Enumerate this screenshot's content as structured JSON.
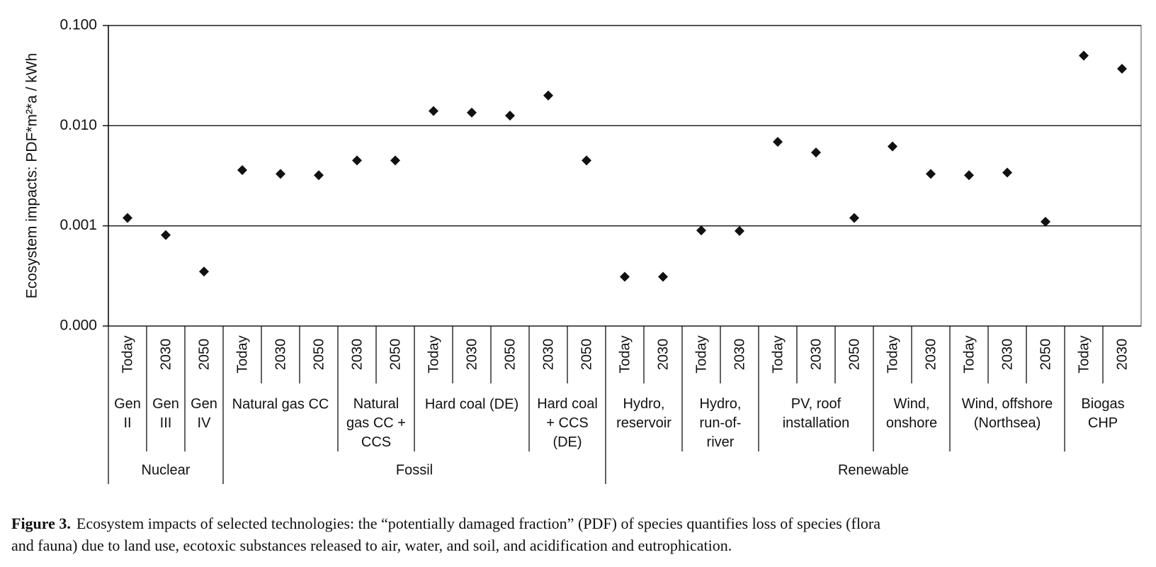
{
  "chart_data": {
    "type": "scatter",
    "y_label": "Ecosystem impacts: PDF*m²*a / kWh",
    "log_scale": true,
    "grid": true,
    "color": "#111111",
    "ylim": [
      0.0001,
      0.1
    ],
    "yticks": [
      {
        "value": 0.0001,
        "label": "0.000"
      },
      {
        "value": 0.001,
        "label": "0.001"
      },
      {
        "value": 0.01,
        "label": "0.010"
      },
      {
        "value": 0.1,
        "label": "0.100"
      }
    ],
    "groups": [
      {
        "name": "Nuclear",
        "subgroups": [
          {
            "name": "Gen\nII",
            "categories": [
              "Today"
            ],
            "values": [
              0.0012
            ]
          },
          {
            "name": "Gen\nIII",
            "categories": [
              "2030"
            ],
            "values": [
              0.00081
            ]
          },
          {
            "name": "Gen\nIV",
            "categories": [
              "2050"
            ],
            "values": [
              0.00035
            ]
          }
        ]
      },
      {
        "name": "Fossil",
        "subgroups": [
          {
            "name": "Natural gas CC",
            "categories": [
              "Today",
              "2030",
              "2050"
            ],
            "values": [
              0.0036,
              0.0033,
              0.0032
            ]
          },
          {
            "name": "Natural\ngas CC +\nCCS",
            "categories": [
              "2030",
              "2050"
            ],
            "values": [
              0.0045,
              0.0045
            ]
          },
          {
            "name": "Hard coal (DE)",
            "categories": [
              "Today",
              "2030",
              "2050"
            ],
            "values": [
              0.014,
              0.0135,
              0.0126
            ]
          },
          {
            "name": "Hard coal\n+ CCS\n(DE)",
            "categories": [
              "2030",
              "2050"
            ],
            "values": [
              0.02,
              0.0045
            ]
          }
        ]
      },
      {
        "name": "Renewable",
        "subgroups": [
          {
            "name": "Hydro,\nreservoir",
            "categories": [
              "Today",
              "2030"
            ],
            "values": [
              0.00031,
              0.00031
            ]
          },
          {
            "name": "Hydro,\nrun-of-\nriver",
            "categories": [
              "Today",
              "2030"
            ],
            "values": [
              0.0009,
              0.00089
            ]
          },
          {
            "name": "PV, roof\ninstallation",
            "categories": [
              "Today",
              "2030",
              "2050"
            ],
            "values": [
              0.0069,
              0.0054,
              0.0012
            ]
          },
          {
            "name": "Wind,\nonshore",
            "categories": [
              "Today",
              "2030"
            ],
            "values": [
              0.0062,
              0.0033
            ]
          },
          {
            "name": "Wind, offshore\n(Northsea)",
            "categories": [
              "Today",
              "2030",
              "2050"
            ],
            "values": [
              0.0032,
              0.0034,
              0.0011
            ]
          },
          {
            "name": "Biogas\nCHP",
            "categories": [
              "Today",
              "2030"
            ],
            "values": [
              0.05,
              0.037
            ]
          }
        ]
      }
    ],
    "caption": {
      "label": "Figure 3.",
      "text": "Ecosystem impacts of selected technologies: the “potentially damaged fraction” (PDF) of species quantifies loss of species (flora\nand fauna) due to land use, ecotoxic substances released to air, water, and soil, and acidification and eutrophication."
    }
  }
}
